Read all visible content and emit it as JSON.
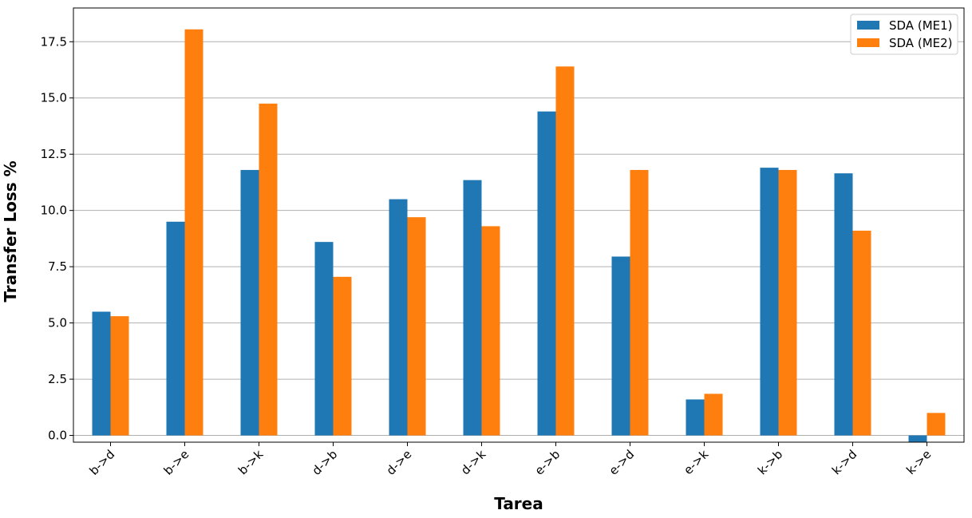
{
  "chart_data": {
    "type": "bar",
    "title": "",
    "xlabel": "Tarea",
    "ylabel": "Transfer Loss %",
    "categories": [
      "b->d",
      "b->e",
      "b->k",
      "d->b",
      "d->e",
      "d->k",
      "e->b",
      "e->d",
      "e->k",
      "k->b",
      "k->d",
      "k->e"
    ],
    "series": [
      {
        "name": "SDA (ME1)",
        "color": "#1f77b4",
        "values": [
          5.5,
          9.5,
          11.8,
          8.6,
          10.5,
          11.35,
          14.4,
          7.95,
          1.6,
          11.9,
          11.65,
          -0.3
        ]
      },
      {
        "name": "SDA (ME2)",
        "color": "#ff7f0e",
        "values": [
          5.3,
          18.05,
          14.75,
          7.05,
          9.7,
          9.3,
          16.4,
          11.8,
          1.85,
          11.8,
          9.1,
          1.0
        ]
      }
    ],
    "yticks": [
      "0.0",
      "2.5",
      "5.0",
      "7.5",
      "10.0",
      "12.5",
      "15.0",
      "17.5"
    ],
    "ylim": [
      -0.3,
      19.0
    ],
    "grid": "horizontal",
    "legend": "top-right"
  }
}
